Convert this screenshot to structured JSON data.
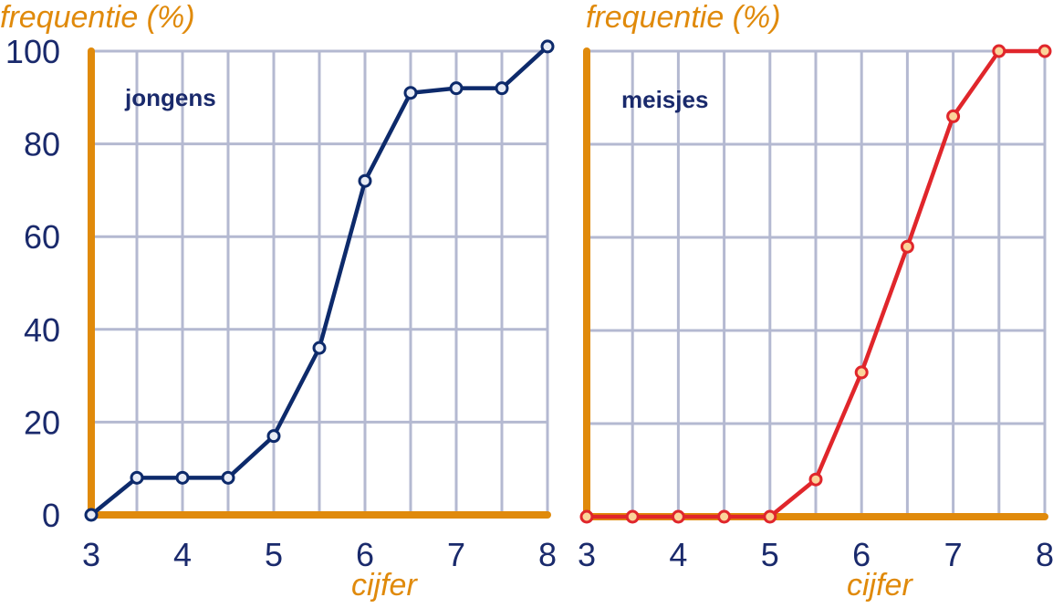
{
  "colors": {
    "axis": "#e08a0b",
    "grid": "#b4b9d1",
    "tick_text": "#1a2a6c",
    "panel_label": "#1a2a6c",
    "axis_title": "#e08a0b"
  },
  "chart_data": [
    {
      "type": "line",
      "label": "jongens",
      "ylabel": "frequentie (%)",
      "xlabel": "cijfer",
      "xlim": [
        3,
        8
      ],
      "ylim": [
        0,
        100
      ],
      "x_ticks": [
        "3",
        "4",
        "5",
        "6",
        "7",
        "8"
      ],
      "y_ticks": [
        "0",
        "20",
        "40",
        "60",
        "80",
        "100"
      ],
      "grid": true,
      "line_color": "#0d2a6b",
      "marker_fill": "#e8ecf6",
      "marker_stroke": "#0d2a6b",
      "x": [
        3,
        3.5,
        4,
        4.5,
        5,
        5.5,
        6,
        6.5,
        7,
        7.5,
        8
      ],
      "y": [
        0,
        8,
        8,
        8,
        17,
        36,
        72,
        91,
        92,
        92,
        101
      ]
    },
    {
      "type": "line",
      "label": "meisjes",
      "ylabel": "frequentie (%)",
      "xlabel": "cijfer",
      "xlim": [
        3,
        8
      ],
      "ylim": [
        0,
        100
      ],
      "x_ticks": [
        "3",
        "4",
        "5",
        "6",
        "7",
        "8"
      ],
      "y_ticks": [],
      "grid": true,
      "line_color": "#e0262b",
      "marker_fill": "#fbd49a",
      "marker_stroke": "#e0262b",
      "x": [
        3,
        3.5,
        4,
        4.5,
        5,
        5.5,
        6,
        6.5,
        7,
        7.5,
        8
      ],
      "y": [
        0,
        0,
        0,
        0,
        0,
        8,
        31,
        58,
        86,
        100,
        100
      ]
    }
  ]
}
